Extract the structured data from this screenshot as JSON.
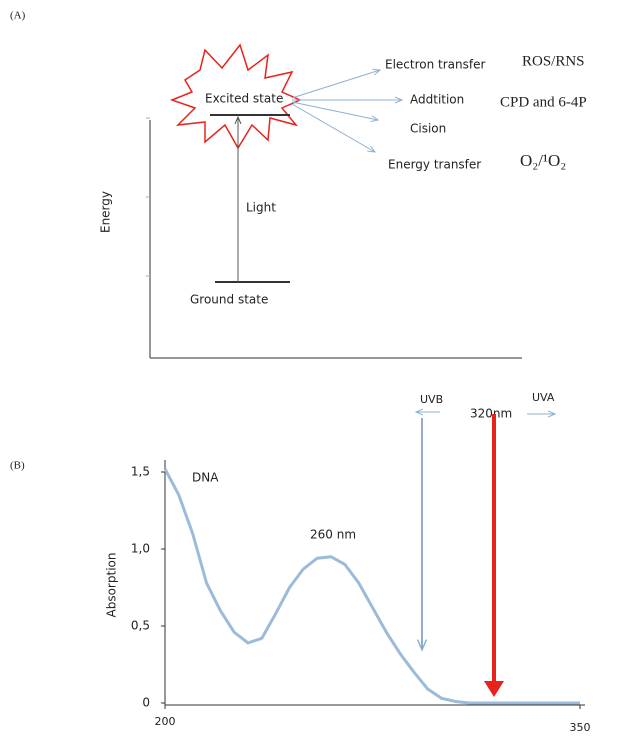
{
  "panel_a": {
    "label": "(A)",
    "y_axis_label": "Energy",
    "excited_state": "Excited state",
    "ground_state": "Ground state",
    "light": "Light",
    "pathways": [
      {
        "name": "Electron transfer",
        "product": "ROS/RNS"
      },
      {
        "name": "Addtition",
        "product": "CPD and 6-4P"
      },
      {
        "name": "Cision"
      },
      {
        "name": "Energy transfer",
        "product": "O₂/¹O₂"
      }
    ]
  },
  "chart_data": {
    "type": "line",
    "panel_label": "(B)",
    "y_label": "Absorption",
    "series_label": "DNA",
    "peak_label": "260 nm",
    "uvb_label": "UVB",
    "uva_label": "UVA",
    "boundary_label": "320nm",
    "x": [
      200,
      205,
      210,
      215,
      220,
      225,
      230,
      235,
      240,
      245,
      250,
      255,
      260,
      265,
      270,
      275,
      280,
      285,
      290,
      295,
      300,
      305,
      310,
      315,
      320,
      325,
      330,
      335,
      340,
      345,
      350
    ],
    "values": [
      1.52,
      1.35,
      1.1,
      0.78,
      0.6,
      0.46,
      0.39,
      0.42,
      0.58,
      0.75,
      0.87,
      0.94,
      0.95,
      0.9,
      0.78,
      0.62,
      0.46,
      0.32,
      0.2,
      0.09,
      0.03,
      0.01,
      0,
      0,
      0,
      0,
      0,
      0,
      0,
      0,
      0
    ],
    "color": "#9bbbd9",
    "xlim": [
      200,
      350
    ],
    "xticks": [
      200,
      350
    ],
    "ylim": [
      0,
      1.5
    ],
    "yticks": [
      0,
      {
        "value": 0.5,
        "label": "0,5"
      },
      {
        "value": 1.0,
        "label": "1,0"
      },
      {
        "value": 1.5,
        "label": "1,5"
      }
    ]
  }
}
